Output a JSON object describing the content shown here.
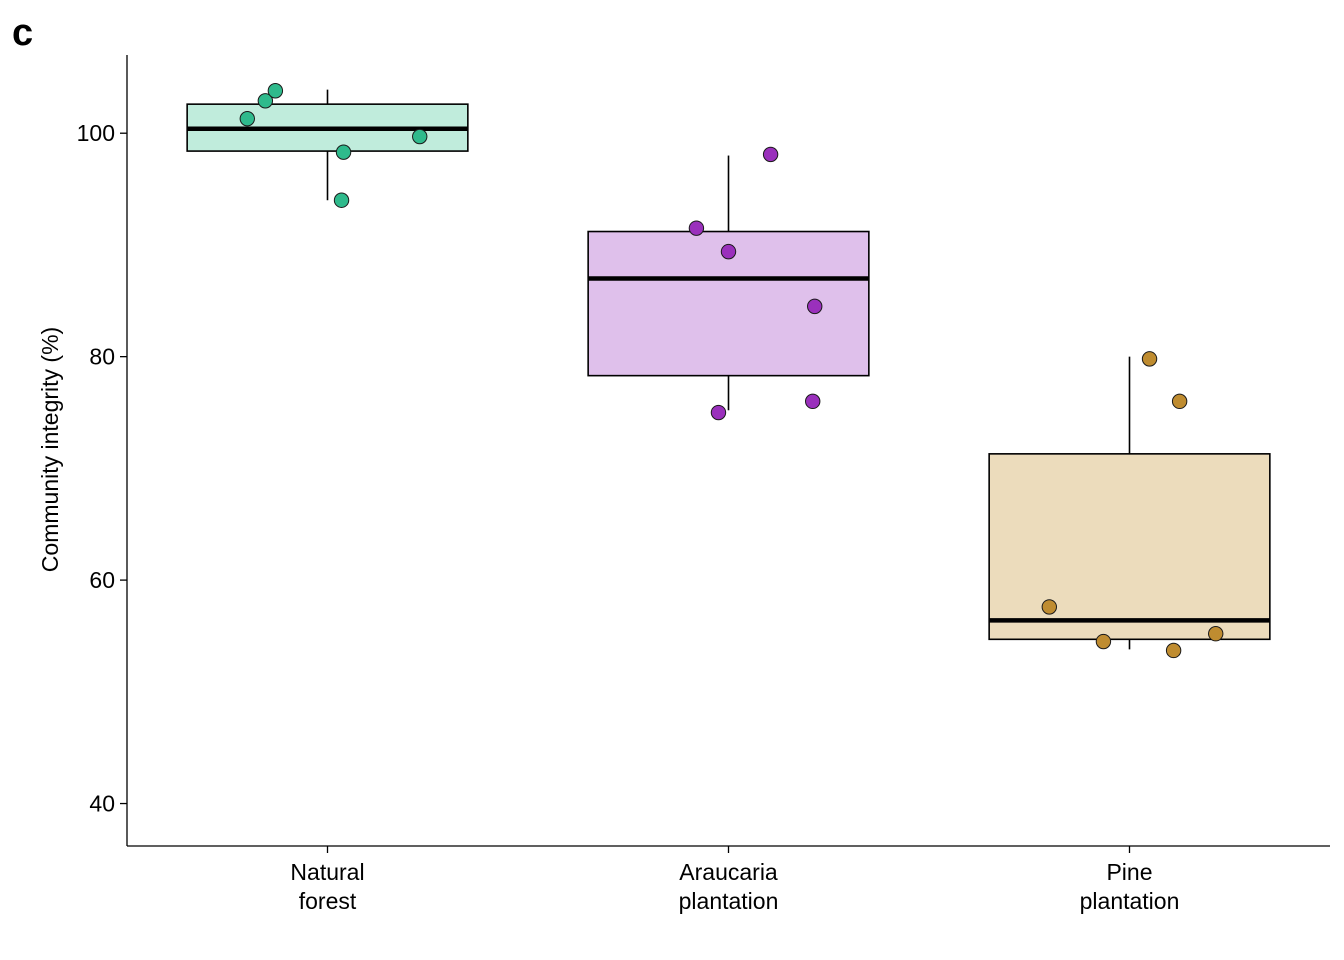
{
  "panel_label": "c",
  "chart_data": {
    "type": "box",
    "title": "",
    "xlabel": "",
    "ylabel": "Community integrity (%)",
    "ylim": [
      36.2,
      107.0
    ],
    "yticks": [
      40,
      60,
      80,
      100
    ],
    "grid": false,
    "legend": "none",
    "categories": [
      {
        "label_lines": [
          "Natural",
          "forest"
        ],
        "fill": "#c0ecdc",
        "point_color": "#2fba8c",
        "box": {
          "whisker_low": 94.0,
          "q1": 98.4,
          "median": 100.4,
          "q3": 102.6,
          "whisker_high": 103.9
        },
        "points": [
          {
            "offset": -0.2,
            "value": 101.3
          },
          {
            "offset": -0.155,
            "value": 102.9
          },
          {
            "offset": -0.13,
            "value": 103.8
          },
          {
            "offset": 0.04,
            "value": 98.3
          },
          {
            "offset": 0.035,
            "value": 94.0
          },
          {
            "offset": 0.23,
            "value": 99.7
          }
        ]
      },
      {
        "label_lines": [
          "Araucaria",
          "plantation"
        ],
        "fill": "#dfc0eb",
        "point_color": "#9a30bc",
        "box": {
          "whisker_low": 75.2,
          "q1": 78.3,
          "median": 87.0,
          "q3": 91.2,
          "whisker_high": 98.0
        },
        "points": [
          {
            "offset": -0.08,
            "value": 91.5
          },
          {
            "offset": 0.0,
            "value": 89.4
          },
          {
            "offset": 0.105,
            "value": 98.1
          },
          {
            "offset": 0.215,
            "value": 84.5
          },
          {
            "offset": -0.025,
            "value": 75.0
          },
          {
            "offset": 0.21,
            "value": 76.0
          }
        ]
      },
      {
        "label_lines": [
          "Pine",
          "plantation"
        ],
        "fill": "#ecdcbc",
        "point_color": "#bf8c30",
        "box": {
          "whisker_low": 53.8,
          "q1": 54.7,
          "median": 56.4,
          "q3": 71.3,
          "whisker_high": 80.0
        },
        "points": [
          {
            "offset": 0.05,
            "value": 79.8
          },
          {
            "offset": 0.125,
            "value": 76.0
          },
          {
            "offset": -0.2,
            "value": 57.6
          },
          {
            "offset": -0.065,
            "value": 54.5
          },
          {
            "offset": 0.11,
            "value": 53.7
          },
          {
            "offset": 0.215,
            "value": 55.2
          }
        ]
      }
    ]
  }
}
